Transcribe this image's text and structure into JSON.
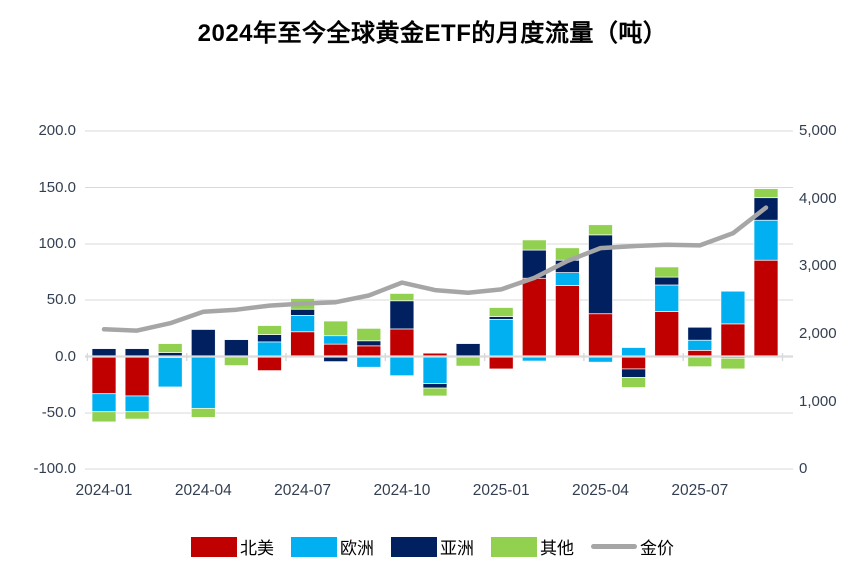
{
  "title": "2024年至今全球黄金ETF的月度流量（吨）",
  "legend": {
    "items": [
      "北美",
      "欧洲",
      "亚洲",
      "其他",
      "金价"
    ]
  },
  "colors": {
    "north_america": "#C00000",
    "europe": "#00B0F0",
    "asia": "#002060",
    "other": "#92D050",
    "gold_price_line": "#A6A6A6",
    "gridline": "#D9D9D9",
    "axis_text": "#333F50"
  },
  "left_axis_ticks": [
    "200.0",
    "150.0",
    "100.0",
    "50.0",
    "0.0",
    "-50.0",
    "-100.0"
  ],
  "right_axis_ticks": [
    "5,000",
    "4,000",
    "3,000",
    "2,000",
    "1,000",
    "0"
  ],
  "x_axis_ticks": [
    "2024-01",
    "2024-04",
    "2024-07",
    "2024-10",
    "2025-01",
    "2025-04",
    "2025-07"
  ],
  "chart_data": {
    "type": "bar",
    "subtype": "stacked-bars-with-line",
    "title": "2024年至今全球黄金ETF的月度流量（吨）",
    "categories": [
      "2024-01",
      "2024-02",
      "2024-03",
      "2024-04",
      "2024-05",
      "2024-06",
      "2024-07",
      "2024-08",
      "2024-09",
      "2024-10",
      "2024-11",
      "2024-12",
      "2025-01",
      "2025-02",
      "2025-03",
      "2025-04",
      "2025-05",
      "2025-06",
      "2025-07",
      "2025-08",
      "2025-09"
    ],
    "series": [
      {
        "name": "北美",
        "key": "north-america",
        "color": "#C00000",
        "values": [
          -33,
          -35,
          -1,
          0,
          0,
          -12.5,
          22,
          11,
          9.5,
          24.5,
          3,
          0,
          -11,
          69.5,
          63,
          38,
          -11,
          40,
          5.5,
          29,
          85.5
        ]
      },
      {
        "name": "欧洲",
        "key": "europe",
        "color": "#00B0F0",
        "values": [
          -16,
          -14,
          -26,
          -46,
          0,
          13,
          14.5,
          7.5,
          -9.5,
          -17,
          -24,
          0,
          33,
          -4,
          11.5,
          -5,
          8,
          23.5,
          9,
          29,
          35.5
        ]
      },
      {
        "name": "亚洲",
        "key": "asia",
        "color": "#002060",
        "values": [
          7,
          7,
          3.5,
          24,
          15,
          6.5,
          5.5,
          -4.5,
          4.5,
          25,
          -4,
          11.5,
          2.5,
          25,
          11,
          70,
          -7.5,
          7,
          11.5,
          -1.5,
          20
        ]
      },
      {
        "name": "其他",
        "key": "other",
        "color": "#92D050",
        "values": [
          -9,
          -6.5,
          8,
          -8,
          -8,
          8,
          9.5,
          13,
          11,
          6.5,
          -7,
          -8.5,
          8,
          9,
          11,
          9,
          -9,
          9,
          -9,
          -9.5,
          8
        ]
      }
    ],
    "line_series": {
      "name": "金价",
      "key": "gold-price",
      "color": "#A6A6A6",
      "axis": "right",
      "values": [
        2070,
        2050,
        2160,
        2330,
        2360,
        2420,
        2450,
        2470,
        2570,
        2760,
        2650,
        2610,
        2660,
        2830,
        3080,
        3270,
        3300,
        3320,
        3310,
        3490,
        3870
      ]
    },
    "left_axis": {
      "min": -100,
      "max": 200,
      "step": 50
    },
    "right_axis": {
      "min": 0,
      "max": 5000,
      "step": 1000
    },
    "grid": true,
    "legend_position": "bottom"
  }
}
